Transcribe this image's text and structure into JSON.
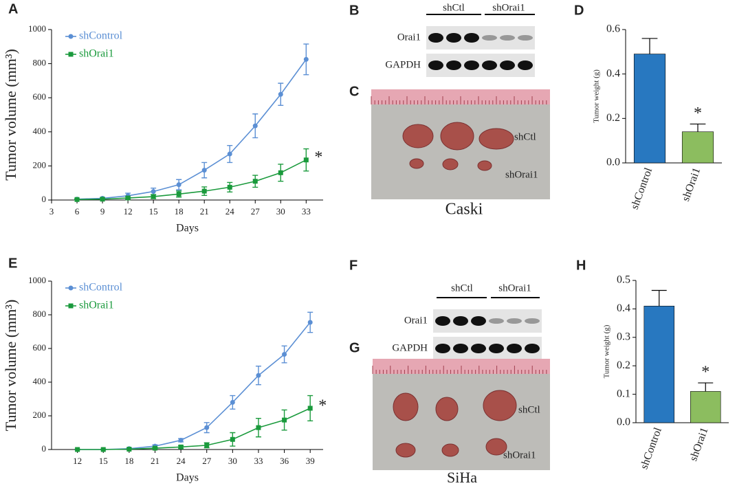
{
  "chart_data": [
    {
      "type": "line",
      "panel": "A",
      "xlabel": "Days",
      "ylabel": "Tumor volume (mm³)",
      "annotation": "*",
      "x": [
        6,
        9,
        12,
        15,
        18,
        21,
        24,
        27,
        30,
        33
      ],
      "xlim": [
        3,
        35
      ],
      "xticks": [
        3,
        6,
        9,
        12,
        15,
        18,
        21,
        24,
        27,
        30,
        33
      ],
      "ylim": [
        0,
        1000
      ],
      "yticks": [
        0,
        200,
        400,
        600,
        800,
        1000
      ],
      "series": [
        {
          "name": "shControl",
          "color": "#5b8fd4",
          "marker": "circle",
          "values": [
            5,
            10,
            25,
            50,
            90,
            175,
            270,
            435,
            620,
            825
          ],
          "errors": [
            3,
            5,
            15,
            20,
            30,
            45,
            50,
            70,
            65,
            90
          ]
        },
        {
          "name": "shOrai1",
          "color": "#1a9a3c",
          "marker": "square",
          "values": [
            3,
            5,
            12,
            20,
            35,
            52,
            75,
            110,
            160,
            235
          ],
          "errors": [
            2,
            3,
            8,
            12,
            18,
            25,
            28,
            35,
            50,
            65
          ]
        }
      ]
    },
    {
      "type": "bar",
      "panel": "D",
      "ylabel": "Tumor weight (g)",
      "annotation": "*",
      "categories": [
        "shControl",
        "shOrai1"
      ],
      "values": [
        0.49,
        0.14
      ],
      "errors": [
        0.07,
        0.035
      ],
      "colors": [
        "#2878c0",
        "#8cbd5f"
      ],
      "ylim": [
        0,
        0.6
      ],
      "yticks": [
        {
          "value": 0,
          "label": "0.0"
        },
        0.2,
        0.4,
        0.6
      ]
    },
    {
      "type": "line",
      "panel": "E",
      "xlabel": "Days",
      "ylabel": "Tumor volume (mm³)",
      "annotation": "*",
      "x": [
        12,
        15,
        18,
        21,
        24,
        27,
        30,
        33,
        36,
        39
      ],
      "xlim": [
        9,
        40.5
      ],
      "xticks": [
        12,
        15,
        18,
        21,
        24,
        27,
        30,
        33,
        36,
        39
      ],
      "ylim": [
        0,
        1000
      ],
      "yticks": [
        0,
        200,
        400,
        600,
        800,
        1000
      ],
      "series": [
        {
          "name": "shControl",
          "color": "#5b8fd4",
          "marker": "circle",
          "values": [
            0,
            0,
            5,
            20,
            55,
            130,
            280,
            440,
            565,
            755
          ],
          "errors": [
            2,
            2,
            4,
            8,
            10,
            30,
            40,
            55,
            50,
            60
          ]
        },
        {
          "name": "shOrai1",
          "color": "#1a9a3c",
          "marker": "square",
          "values": [
            0,
            0,
            2,
            8,
            15,
            25,
            60,
            130,
            175,
            245
          ],
          "errors": [
            1,
            1,
            2,
            5,
            8,
            15,
            40,
            55,
            60,
            75
          ]
        }
      ]
    },
    {
      "type": "bar",
      "panel": "H",
      "ylabel": "Tumor weight (g)",
      "annotation": "*",
      "categories": [
        "shControl",
        "shOrai1"
      ],
      "values": [
        0.41,
        0.11
      ],
      "errors": [
        0.055,
        0.03
      ],
      "colors": [
        "#2878c0",
        "#8cbd5f"
      ],
      "ylim": [
        0,
        0.5
      ],
      "yticks": [
        {
          "value": 0,
          "label": "0.0"
        },
        0.1,
        0.2,
        0.3,
        0.4,
        0.5
      ]
    }
  ],
  "blots": [
    {
      "panel": "B",
      "groups": [
        "shCtl",
        "shOrai1"
      ],
      "rows": [
        "Orai1",
        "GAPDH"
      ]
    },
    {
      "panel": "F",
      "groups": [
        "shCtl",
        "shOrai1"
      ],
      "rows": [
        "Orai1",
        "GAPDH"
      ]
    }
  ],
  "photos": [
    {
      "panel": "C",
      "labels": [
        "shCtl",
        "shOrai1"
      ],
      "caption": "Caski"
    },
    {
      "panel": "G",
      "labels": [
        "shCtl",
        "shOrai1"
      ],
      "caption": "SiHa"
    }
  ]
}
